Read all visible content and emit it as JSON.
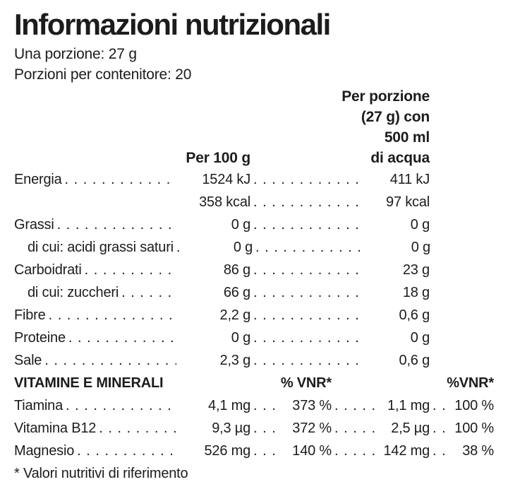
{
  "label": {
    "title": "Informazioni nutrizionali",
    "serving_line": "Una porzione: 27 g",
    "servings_line": "Porzioni per contenitore: 20",
    "columns": {
      "per100": "Per 100 g",
      "portion_lines": [
        "Per porzione",
        "(27 g) con",
        "500 ml",
        "di acqua"
      ]
    },
    "rows": [
      {
        "label": "Energia",
        "v1": "1524 kJ",
        "v2": "411 kJ"
      },
      {
        "label": "",
        "v1": "358 kcal",
        "v2": "97 kcal"
      },
      {
        "label": "Grassi",
        "v1": "0 g",
        "v2": "0 g"
      },
      {
        "label": "di cui: acidi grassi saturi",
        "v1": "0 g",
        "v2": "0 g"
      },
      {
        "label": "Carboidrati",
        "v1": "86 g",
        "v2": "23 g"
      },
      {
        "label": "di cui: zuccheri",
        "v1": "66 g",
        "v2": "18 g"
      },
      {
        "label": "Fibre",
        "v1": "2,2 g",
        "v2": "0,6 g"
      },
      {
        "label": "Proteine",
        "v1": "0 g",
        "v2": "0 g"
      },
      {
        "label": "Sale",
        "v1": "2,3 g",
        "v2": "0,6 g"
      }
    ],
    "vitamins": {
      "header": "VITAMINE E MINERALI",
      "vnr1_header": "% VNR*",
      "vnr2_header": "%VNR*",
      "rows": [
        {
          "label": "Tiamina",
          "v1": "4,1 mg",
          "vnr1": "373 %",
          "v2": "1,1 mg",
          "vnr2": "100 %"
        },
        {
          "label": "Vitamina B12",
          "v1": "9,3 µg",
          "vnr1": "372 %",
          "v2": "2,5 µg",
          "vnr2": "100 %"
        },
        {
          "label": "Magnesio",
          "v1": "526 mg",
          "vnr1": "140 %",
          "v2": "142 mg",
          "vnr2": "38 %"
        }
      ]
    },
    "footnote": "* Valori nutritivi di riferimento",
    "text_color": "#1c1c1c",
    "background_color": "#ffffff"
  }
}
